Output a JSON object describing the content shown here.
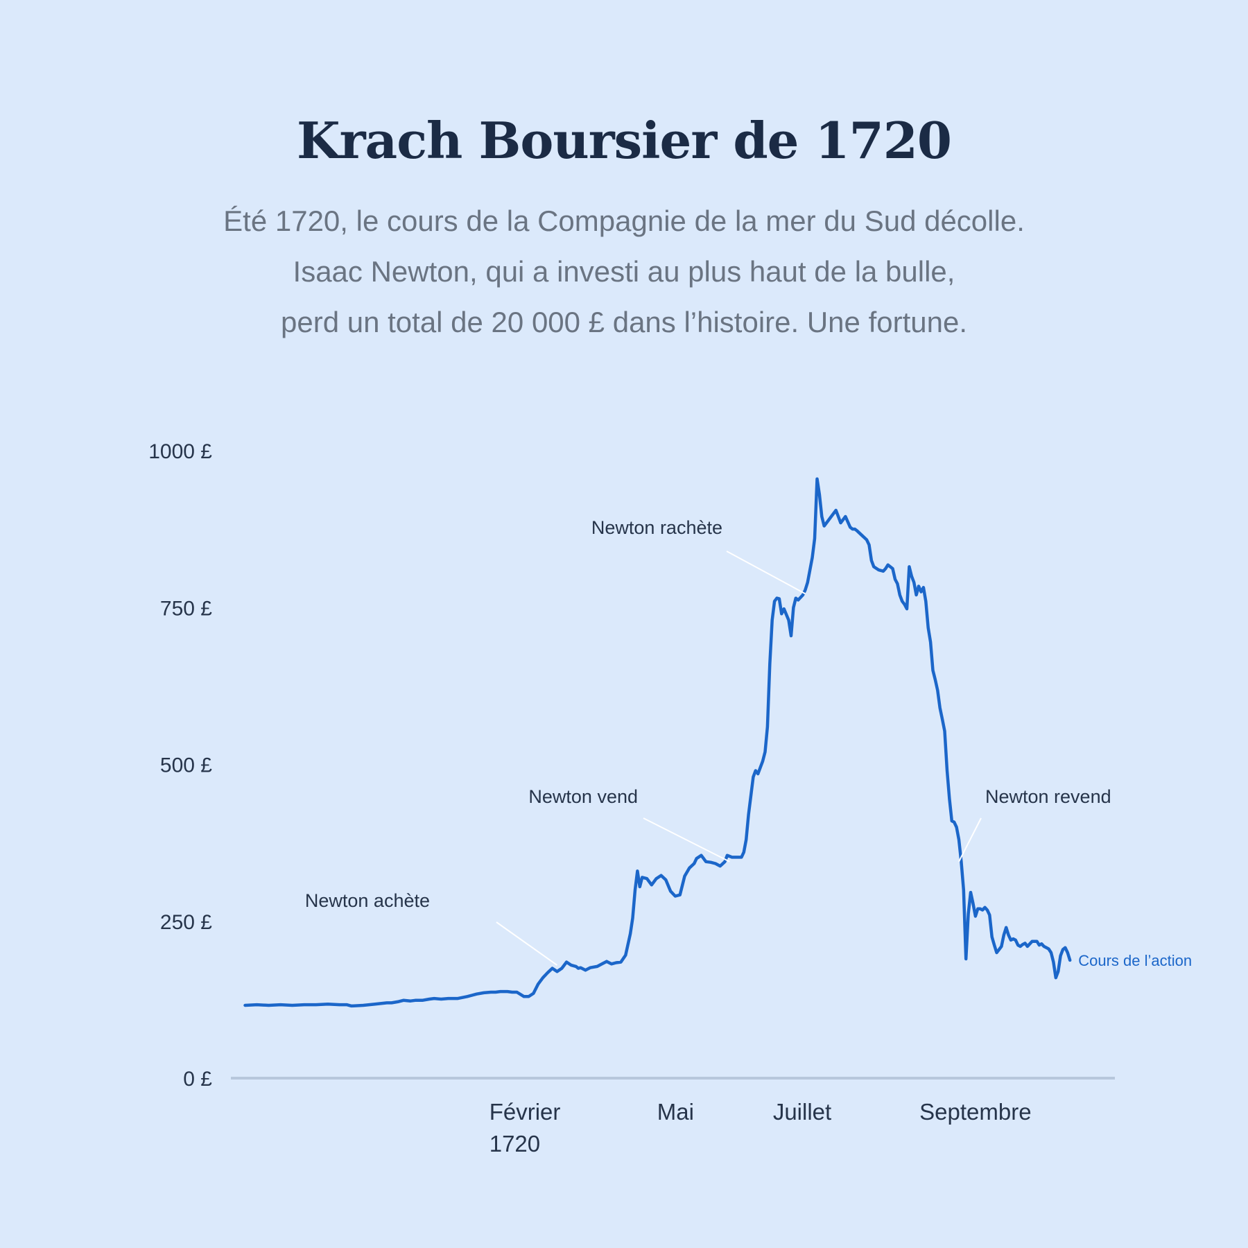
{
  "header": {
    "title": "Krach Boursier de 1720",
    "subtitle_lines": [
      "Été 1720, le cours de la Compagnie de la mer du Sud décolle.",
      "Isaac Newton, qui a investi au plus haut de la bulle,",
      "perd un total de 20 000 £ dans l’histoire. Une fortune."
    ]
  },
  "colors": {
    "background": "#dbe9fb",
    "line": "#1b66c9",
    "axis": "#b7c7dc",
    "text": "#26344a",
    "subtitle": "#6a7482",
    "leader": "#ffffff"
  },
  "chart_data": {
    "type": "line",
    "title": "Krach Boursier de 1720",
    "xlabel": "",
    "ylabel": "",
    "ylim": [
      0,
      1000
    ],
    "y_ticks": [
      {
        "value": 0,
        "label": "0 £"
      },
      {
        "value": 250,
        "label": "250 £"
      },
      {
        "value": 500,
        "label": "500 £"
      },
      {
        "value": 750,
        "label": "750 £"
      },
      {
        "value": 1000,
        "label": "1000 £"
      }
    ],
    "x_ticks": [
      {
        "x": 118,
        "lines": [
          "Février",
          "1720"
        ]
      },
      {
        "x": 189,
        "lines": [
          "Mai"
        ]
      },
      {
        "x": 238,
        "lines": [
          "Juillet"
        ]
      },
      {
        "x": 300,
        "lines": [
          "Septembre"
        ]
      }
    ],
    "xlim": [
      -6,
      368
    ],
    "grid": false,
    "series": [
      {
        "name": "Cours de l’action",
        "points": [
          [
            0,
            116
          ],
          [
            5,
            117
          ],
          [
            10,
            116
          ],
          [
            15,
            117
          ],
          [
            20,
            116
          ],
          [
            25,
            117
          ],
          [
            30,
            117
          ],
          [
            35,
            118
          ],
          [
            40,
            117
          ],
          [
            43,
            117
          ],
          [
            45,
            115
          ],
          [
            50,
            116
          ],
          [
            55,
            118
          ],
          [
            60,
            120
          ],
          [
            62,
            120
          ],
          [
            65,
            122
          ],
          [
            67,
            124
          ],
          [
            70,
            123
          ],
          [
            72,
            124
          ],
          [
            75,
            124
          ],
          [
            78,
            126
          ],
          [
            80,
            127
          ],
          [
            83,
            126
          ],
          [
            86,
            127
          ],
          [
            90,
            127
          ],
          [
            94,
            130
          ],
          [
            96,
            132
          ],
          [
            98,
            134
          ],
          [
            101,
            136
          ],
          [
            104,
            137
          ],
          [
            106,
            137
          ],
          [
            108,
            138
          ],
          [
            111,
            138
          ],
          [
            113,
            137
          ],
          [
            115,
            137
          ],
          [
            118,
            130
          ],
          [
            120,
            130
          ],
          [
            122,
            135
          ],
          [
            124,
            150
          ],
          [
            126,
            160
          ],
          [
            128,
            168
          ],
          [
            130,
            175
          ],
          [
            132,
            170
          ],
          [
            134,
            175
          ],
          [
            136,
            185
          ],
          [
            138,
            180
          ],
          [
            140,
            178
          ],
          [
            141,
            175
          ],
          [
            142,
            176
          ],
          [
            144,
            172
          ],
          [
            146,
            176
          ],
          [
            149,
            178
          ],
          [
            151,
            182
          ],
          [
            153,
            186
          ],
          [
            155,
            182
          ],
          [
            157,
            184
          ],
          [
            159,
            185
          ],
          [
            161,
            196
          ],
          [
            163,
            230
          ],
          [
            164,
            255
          ],
          [
            165,
            300
          ],
          [
            166,
            330
          ],
          [
            167,
            305
          ],
          [
            168,
            320
          ],
          [
            170,
            318
          ],
          [
            172,
            308
          ],
          [
            174,
            318
          ],
          [
            176,
            323
          ],
          [
            178,
            316
          ],
          [
            180,
            298
          ],
          [
            182,
            290
          ],
          [
            184,
            292
          ],
          [
            186,
            322
          ],
          [
            188,
            335
          ],
          [
            190,
            342
          ],
          [
            191,
            350
          ],
          [
            193,
            355
          ],
          [
            195,
            345
          ],
          [
            197,
            344
          ],
          [
            199,
            342
          ],
          [
            201,
            338
          ],
          [
            203,
            345
          ],
          [
            204,
            355
          ],
          [
            206,
            352
          ],
          [
            208,
            352
          ],
          [
            210,
            352
          ],
          [
            211,
            360
          ],
          [
            212,
            380
          ],
          [
            213,
            420
          ],
          [
            214,
            450
          ],
          [
            215,
            480
          ],
          [
            216,
            490
          ],
          [
            217,
            485
          ],
          [
            219,
            505
          ],
          [
            220,
            520
          ],
          [
            221,
            560
          ],
          [
            222,
            660
          ],
          [
            223,
            730
          ],
          [
            224,
            760
          ],
          [
            225,
            765
          ],
          [
            226,
            764
          ],
          [
            227,
            740
          ],
          [
            228,
            748
          ],
          [
            230,
            730
          ],
          [
            231,
            705
          ],
          [
            232,
            750
          ],
          [
            233,
            765
          ],
          [
            234,
            762
          ],
          [
            236,
            770
          ],
          [
            237,
            778
          ],
          [
            238,
            790
          ],
          [
            240,
            830
          ],
          [
            241,
            860
          ],
          [
            242,
            955
          ],
          [
            243,
            930
          ],
          [
            244,
            895
          ],
          [
            245,
            880
          ],
          [
            246,
            885
          ],
          [
            248,
            895
          ],
          [
            249,
            900
          ],
          [
            250,
            905
          ],
          [
            251,
            895
          ],
          [
            252,
            885
          ],
          [
            253,
            890
          ],
          [
            254,
            895
          ],
          [
            256,
            878
          ],
          [
            257,
            875
          ],
          [
            258,
            875
          ],
          [
            259,
            872
          ],
          [
            261,
            865
          ],
          [
            263,
            858
          ],
          [
            264,
            850
          ],
          [
            265,
            825
          ],
          [
            266,
            815
          ],
          [
            268,
            810
          ],
          [
            270,
            808
          ],
          [
            271,
            812
          ],
          [
            272,
            818
          ],
          [
            274,
            812
          ],
          [
            275,
            795
          ],
          [
            276,
            788
          ],
          [
            277,
            770
          ],
          [
            278,
            760
          ],
          [
            279,
            755
          ],
          [
            280,
            748
          ],
          [
            281,
            815
          ],
          [
            282,
            800
          ],
          [
            283,
            790
          ],
          [
            284,
            770
          ],
          [
            285,
            784
          ],
          [
            286,
            775
          ],
          [
            287,
            782
          ],
          [
            288,
            760
          ],
          [
            289,
            718
          ],
          [
            290,
            695
          ],
          [
            291,
            650
          ],
          [
            292,
            635
          ],
          [
            293,
            618
          ],
          [
            294,
            590
          ],
          [
            295,
            572
          ],
          [
            296,
            553
          ],
          [
            297,
            490
          ],
          [
            298,
            445
          ],
          [
            299,
            410
          ],
          [
            300,
            408
          ],
          [
            301,
            400
          ],
          [
            302,
            380
          ],
          [
            303,
            345
          ],
          [
            304,
            300
          ],
          [
            305,
            190
          ],
          [
            306,
            262
          ],
          [
            307,
            296
          ],
          [
            308,
            278
          ],
          [
            309,
            258
          ],
          [
            310,
            270
          ],
          [
            311,
            270
          ],
          [
            312,
            268
          ],
          [
            313,
            272
          ],
          [
            314,
            268
          ],
          [
            315,
            260
          ],
          [
            316,
            225
          ],
          [
            317,
            212
          ],
          [
            318,
            200
          ],
          [
            319,
            205
          ],
          [
            320,
            210
          ],
          [
            321,
            228
          ],
          [
            322,
            240
          ],
          [
            323,
            228
          ],
          [
            324,
            220
          ],
          [
            325,
            222
          ],
          [
            326,
            220
          ],
          [
            327,
            212
          ],
          [
            328,
            210
          ],
          [
            329,
            213
          ],
          [
            330,
            215
          ],
          [
            331,
            210
          ],
          [
            332,
            214
          ],
          [
            333,
            218
          ],
          [
            334,
            218
          ],
          [
            335,
            218
          ],
          [
            336,
            212
          ],
          [
            337,
            214
          ],
          [
            338,
            210
          ],
          [
            339,
            208
          ],
          [
            340,
            206
          ],
          [
            341,
            200
          ],
          [
            342,
            185
          ],
          [
            343,
            160
          ],
          [
            344,
            170
          ],
          [
            345,
            195
          ],
          [
            346,
            205
          ],
          [
            347,
            208
          ],
          [
            348,
            200
          ],
          [
            349,
            188
          ]
        ]
      }
    ],
    "annotations": [
      {
        "label": "Newton achète",
        "x": 132,
        "y": 180
      },
      {
        "label": "Newton vend",
        "x": 205,
        "y": 345
      },
      {
        "label": "Newton rachète",
        "x": 237,
        "y": 772
      },
      {
        "label": "Newton revend",
        "x": 302,
        "y": 345
      }
    ]
  }
}
